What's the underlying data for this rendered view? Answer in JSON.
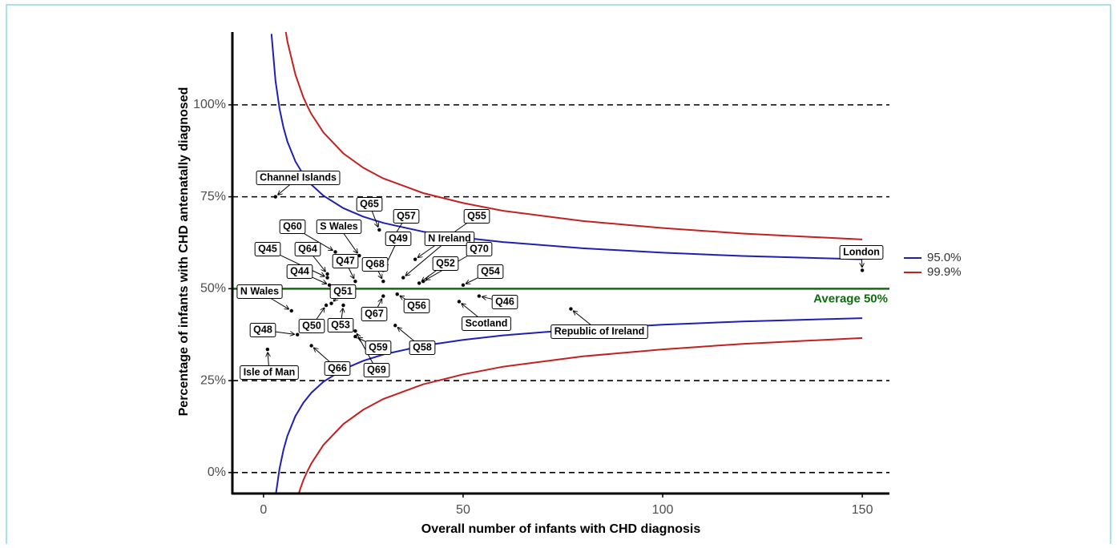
{
  "chart_data": {
    "type": "scatter",
    "xlabel": "Overall number of infants with CHD diagnosis",
    "ylabel": "Percentage of infants with CHD antenatally diagnosed",
    "xlim": [
      -7.8,
      156.8
    ],
    "ylim": [
      -5.7,
      119.8
    ],
    "xticks": [
      0,
      50,
      100,
      150
    ],
    "yticks": [
      {
        "value": 0,
        "label": "0%"
      },
      {
        "value": 25,
        "label": "25%"
      },
      {
        "value": 50,
        "label": "50%"
      },
      {
        "value": 75,
        "label": "75%"
      },
      {
        "value": 100,
        "label": "100%"
      }
    ],
    "grid": true,
    "average": {
      "value": 50,
      "label": "Average 50%",
      "color": "#0f6b0f"
    },
    "limits": [
      {
        "name": "95.0%",
        "color": "#1f1fb4",
        "x": [
          2,
          3,
          4,
          5,
          6,
          8,
          10,
          12,
          15,
          20,
          25,
          30,
          40,
          50,
          60,
          80,
          100,
          120,
          150
        ],
        "upper": [
          119.3,
          106.6,
          99,
          93.8,
          90,
          84.6,
          81,
          78.3,
          75.3,
          71.9,
          69.6,
          67.9,
          65.5,
          63.9,
          62.7,
          61,
          59.8,
          58.9,
          58.0
        ],
        "lower": [
          -19.3,
          -6.6,
          1,
          6.2,
          10,
          15.4,
          19,
          21.7,
          24.7,
          28.1,
          30.4,
          32.1,
          34.5,
          36.1,
          37.3,
          39,
          40.2,
          41.1,
          42.0
        ]
      },
      {
        "name": "99.9%",
        "color": "#c42020",
        "x": [
          5,
          6,
          8,
          10,
          11,
          12,
          15,
          20,
          25,
          30,
          40,
          50,
          60,
          80,
          100,
          120,
          150
        ],
        "upper": [
          123.6,
          117.2,
          108.2,
          102,
          99.6,
          97.5,
          92.5,
          86.8,
          82.9,
          80,
          76,
          73.3,
          71.2,
          68.4,
          66.5,
          65,
          63.4
        ],
        "lower": [
          -23.6,
          -17.2,
          -8.2,
          -2,
          0.4,
          2.5,
          7.5,
          13.2,
          17.1,
          20,
          24,
          26.7,
          28.8,
          31.6,
          33.5,
          35,
          36.6
        ]
      }
    ],
    "points": {
      "color": "#000000",
      "labels": [
        "Channel Islands",
        "Q65",
        "Q57",
        "Q55",
        "Q60",
        "S Wales",
        "Q49",
        "N Ireland",
        "Q45",
        "Q64",
        "Q70",
        "London",
        "Q47",
        "Q68",
        "Q52",
        "Q44",
        "Q54",
        "N Wales",
        "Q51",
        "Q46",
        "Q67",
        "Q56",
        "Scotland",
        "Q48",
        "Q50",
        "Q53",
        "Republic of Ireland",
        "Q59",
        "Q58",
        "Isle of Man",
        "Q66",
        "Q69"
      ],
      "x": [
        3,
        29,
        32,
        38,
        18,
        24,
        30,
        35,
        16,
        16,
        40,
        150,
        23,
        30,
        39,
        16.5,
        50,
        7,
        17,
        54,
        30,
        33.5,
        49,
        8.5,
        15.7,
        20,
        77,
        23,
        33,
        1,
        12,
        23
      ],
      "values": [
        75,
        66,
        63,
        58,
        60,
        59,
        55,
        53,
        53,
        54,
        52,
        55,
        52,
        52,
        51.5,
        51,
        51,
        44,
        46,
        48,
        48,
        48.5,
        46.5,
        37.5,
        45.5,
        45.5,
        44.5,
        37,
        40,
        33.5,
        34.5,
        38.5
      ]
    }
  }
}
